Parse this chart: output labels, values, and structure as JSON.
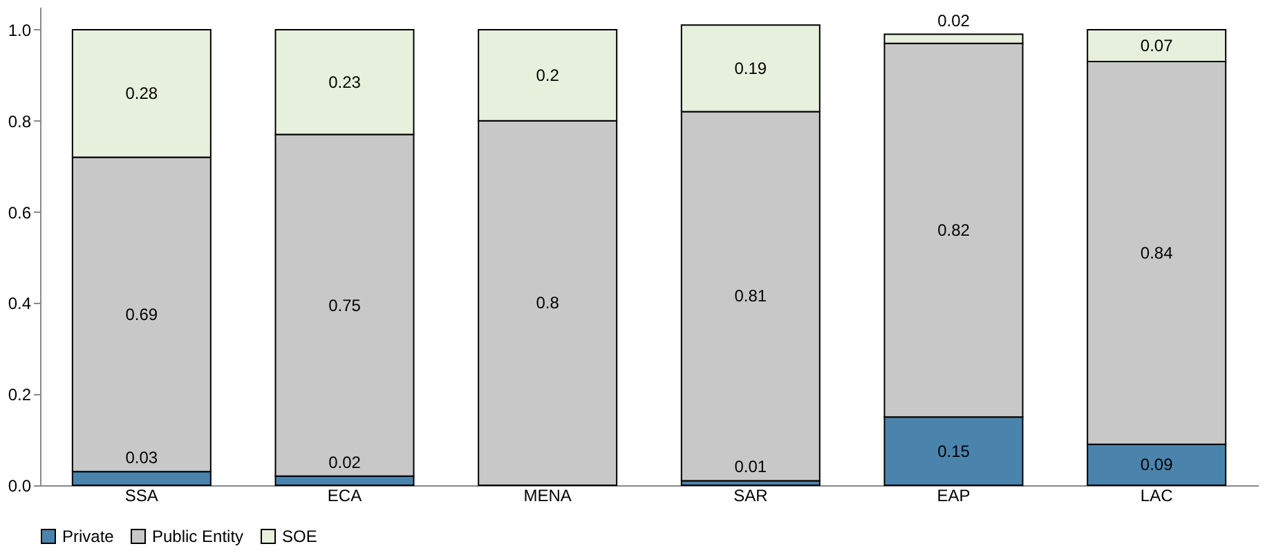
{
  "chart_data": {
    "type": "bar",
    "stacked": true,
    "categories": [
      "SSA",
      "ECA",
      "MENA",
      "SAR",
      "EAP",
      "LAC"
    ],
    "series": [
      {
        "name": "Private",
        "color": "#4a84ad",
        "values": [
          0.03,
          0.02,
          0,
          0.01,
          0.15,
          0.09
        ],
        "value_labels": [
          "0.03",
          "0.02",
          null,
          "0.01",
          "0.15",
          "0.09"
        ]
      },
      {
        "name": "Public Entity",
        "color": "#c8c8c8",
        "values": [
          0.69,
          0.75,
          0.8,
          0.81,
          0.82,
          0.84
        ],
        "value_labels": [
          "0.69",
          "0.75",
          "0.8",
          "0.81",
          "0.82",
          "0.84"
        ]
      },
      {
        "name": "SOE",
        "color": "#e6f0dc",
        "values": [
          0.28,
          0.23,
          0.2,
          0.19,
          0.02,
          0.07
        ],
        "value_labels": [
          "0.28",
          "0.23",
          "0.2",
          "0.19",
          "0.02",
          "0.07"
        ]
      }
    ],
    "ylim": [
      0,
      1.05
    ],
    "yticks": [
      {
        "value": 0,
        "label": "0.0"
      },
      {
        "value": 0.2,
        "label": "0.2"
      },
      {
        "value": 0.4,
        "label": "0.4"
      },
      {
        "value": 0.6,
        "label": "0.6"
      },
      {
        "value": 0.8,
        "label": "0.8"
      },
      {
        "value": 1,
        "label": "1.0"
      }
    ],
    "grid": false,
    "legend": "bottom"
  }
}
